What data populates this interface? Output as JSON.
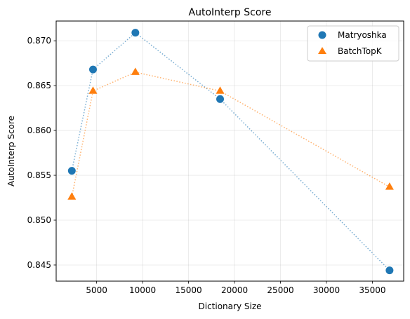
{
  "chart_data": {
    "type": "scatter",
    "title": "AutoInterp Score",
    "xlabel": "Dictionary Size",
    "ylabel": "AutoInterp Score",
    "xlim": [
      600,
      38400
    ],
    "ylim": [
      0.8432,
      0.8722
    ],
    "xticks": [
      5000,
      10000,
      15000,
      20000,
      25000,
      30000,
      35000
    ],
    "xtick_labels": [
      "5000",
      "10000",
      "15000",
      "20000",
      "25000",
      "30000",
      "35000"
    ],
    "yticks": [
      0.845,
      0.85,
      0.855,
      0.86,
      0.865,
      0.87
    ],
    "ytick_labels": [
      "0.845",
      "0.850",
      "0.855",
      "0.860",
      "0.865",
      "0.870"
    ],
    "grid": true,
    "legend": "top-right",
    "series": [
      {
        "name": "Matryoshka",
        "marker": "circle",
        "color": "#1f77b4",
        "x": [
          2304,
          4608,
          9216,
          18432,
          36864
        ],
        "y": [
          0.8555,
          0.8668,
          0.8709,
          0.8635,
          0.8444
        ]
      },
      {
        "name": "BatchTopK",
        "marker": "triangle",
        "color": "#ff7f0e",
        "x": [
          2304,
          4608,
          9216,
          18432,
          36864
        ],
        "y": [
          0.8526,
          0.8644,
          0.8665,
          0.8644,
          0.8537
        ]
      }
    ]
  }
}
